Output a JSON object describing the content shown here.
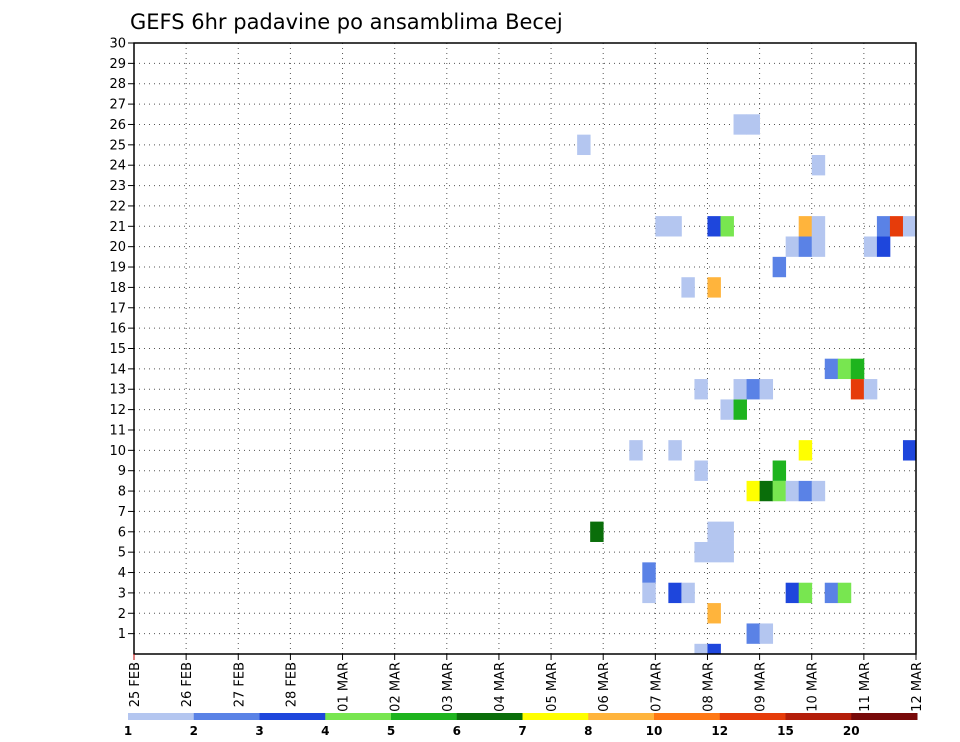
{
  "chart_data": {
    "type": "heatmap",
    "title": "GEFS 6hr padavine po ansamblima Becej",
    "x_labels": [
      "25 FEB",
      "26 FEB",
      "27 FEB",
      "28 FEB",
      "01 MAR",
      "02 MAR",
      "03 MAR",
      "04 MAR",
      "05 MAR",
      "06 MAR",
      "07 MAR",
      "08 MAR",
      "09 MAR",
      "10 MAR",
      "11 MAR",
      "12 MAR"
    ],
    "y_labels": [
      "1",
      "2",
      "3",
      "4",
      "5",
      "6",
      "7",
      "8",
      "9",
      "10",
      "11",
      "12",
      "13",
      "14",
      "15",
      "16",
      "17",
      "18",
      "19",
      "20",
      "21",
      "22",
      "23",
      "24",
      "25",
      "26",
      "27",
      "28",
      "29",
      "30"
    ],
    "xlim": [
      0,
      60
    ],
    "ylim": [
      0,
      30
    ],
    "grid": true,
    "colorbar": {
      "labels": [
        "1",
        "2",
        "3",
        "4",
        "5",
        "6",
        "7",
        "8",
        "10",
        "12",
        "15",
        "20"
      ],
      "colors": [
        "#b4c6f0",
        "#5a82e6",
        "#1e46dc",
        "#78e650",
        "#1eb41e",
        "#0a6e0a",
        "#ffff00",
        "#ffb43c",
        "#ff7814",
        "#e63c0a",
        "#b41e0a",
        "#780a0a"
      ]
    },
    "cells": [
      {
        "x": 43,
        "y": -1,
        "v": 1
      },
      {
        "x": 44,
        "y": -1,
        "v": 3
      },
      {
        "x": 47,
        "y": 0,
        "v": 2
      },
      {
        "x": 48,
        "y": 0,
        "v": 1
      },
      {
        "x": 44,
        "y": 1,
        "v": 8
      },
      {
        "x": 39,
        "y": 2,
        "v": 1
      },
      {
        "x": 41,
        "y": 2,
        "v": 3
      },
      {
        "x": 42,
        "y": 2,
        "v": 1
      },
      {
        "x": 50,
        "y": 2,
        "v": 3
      },
      {
        "x": 51,
        "y": 2,
        "v": 4
      },
      {
        "x": 53,
        "y": 2,
        "v": 2
      },
      {
        "x": 54,
        "y": 2,
        "v": 4
      },
      {
        "x": 39,
        "y": 3,
        "v": 2
      },
      {
        "x": 43,
        "y": 4,
        "v": 1
      },
      {
        "x": 44,
        "y": 4,
        "v": 1
      },
      {
        "x": 45,
        "y": 4,
        "v": 1
      },
      {
        "x": 44,
        "y": 5,
        "v": 1
      },
      {
        "x": 45,
        "y": 5,
        "v": 1
      },
      {
        "x": 35,
        "y": 5,
        "v": 6
      },
      {
        "x": 47,
        "y": 7,
        "v": 7
      },
      {
        "x": 48,
        "y": 7,
        "v": 6
      },
      {
        "x": 49,
        "y": 7,
        "v": 4
      },
      {
        "x": 50,
        "y": 7,
        "v": 1
      },
      {
        "x": 51,
        "y": 7,
        "v": 2
      },
      {
        "x": 52,
        "y": 7,
        "v": 1
      },
      {
        "x": 43,
        "y": 8,
        "v": 1
      },
      {
        "x": 49,
        "y": 8,
        "v": 5
      },
      {
        "x": 38,
        "y": 9,
        "v": 1
      },
      {
        "x": 41,
        "y": 9,
        "v": 1
      },
      {
        "x": 51,
        "y": 9,
        "v": 7
      },
      {
        "x": 59,
        "y": 9,
        "v": 3
      },
      {
        "x": 45,
        "y": 11,
        "v": 1
      },
      {
        "x": 46,
        "y": 11,
        "v": 5
      },
      {
        "x": 43,
        "y": 12,
        "v": 1
      },
      {
        "x": 46,
        "y": 12,
        "v": 1
      },
      {
        "x": 47,
        "y": 12,
        "v": 2
      },
      {
        "x": 48,
        "y": 12,
        "v": 1
      },
      {
        "x": 55,
        "y": 12,
        "v": 10
      },
      {
        "x": 56,
        "y": 12,
        "v": 1
      },
      {
        "x": 53,
        "y": 13,
        "v": 2
      },
      {
        "x": 54,
        "y": 13,
        "v": 4
      },
      {
        "x": 55,
        "y": 13,
        "v": 5
      },
      {
        "x": 42,
        "y": 17,
        "v": 1
      },
      {
        "x": 44,
        "y": 17,
        "v": 8
      },
      {
        "x": 49,
        "y": 18,
        "v": 2
      },
      {
        "x": 50,
        "y": 19,
        "v": 1
      },
      {
        "x": 51,
        "y": 19,
        "v": 2
      },
      {
        "x": 52,
        "y": 19,
        "v": 1
      },
      {
        "x": 56,
        "y": 19,
        "v": 1
      },
      {
        "x": 57,
        "y": 19,
        "v": 3
      },
      {
        "x": 40,
        "y": 20,
        "v": 1
      },
      {
        "x": 41,
        "y": 20,
        "v": 1
      },
      {
        "x": 44,
        "y": 20,
        "v": 3
      },
      {
        "x": 45,
        "y": 20,
        "v": 4
      },
      {
        "x": 51,
        "y": 20,
        "v": 8
      },
      {
        "x": 52,
        "y": 20,
        "v": 1
      },
      {
        "x": 57,
        "y": 20,
        "v": 2
      },
      {
        "x": 58,
        "y": 20,
        "v": 10
      },
      {
        "x": 59,
        "y": 20,
        "v": 1
      },
      {
        "x": 52,
        "y": 23,
        "v": 1
      },
      {
        "x": 34,
        "y": 24,
        "v": 1
      },
      {
        "x": 46,
        "y": 25,
        "v": 1
      },
      {
        "x": 47,
        "y": 25,
        "v": 1
      }
    ]
  }
}
